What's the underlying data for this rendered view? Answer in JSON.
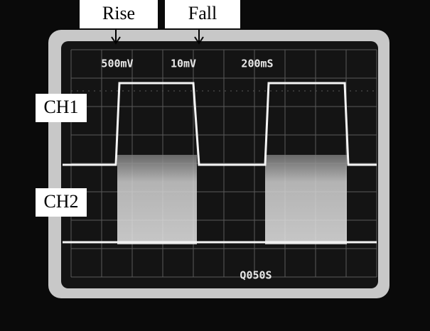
{
  "labels": {
    "rise": "Rise",
    "fall": "Fall",
    "ch1": "CH1",
    "ch2": "CH2"
  },
  "screen": {
    "ch1_scale": "500mV",
    "ch2_scale": "10mV",
    "time_base": "200mS",
    "delay": "Q050S"
  }
}
